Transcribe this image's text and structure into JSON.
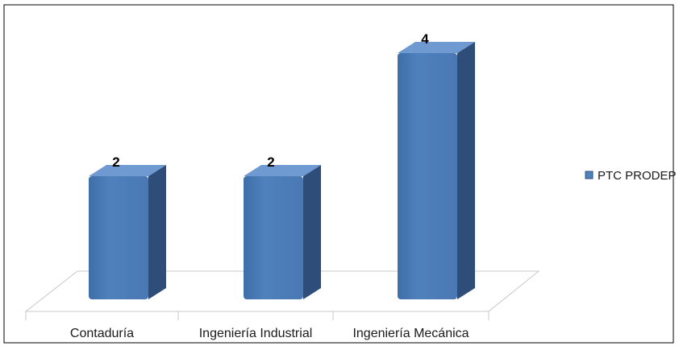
{
  "chart_data": {
    "type": "bar",
    "style": "3d-column",
    "categories": [
      "Contaduría",
      "Ingeniería Industrial",
      "Ingeniería Mecánica"
    ],
    "series": [
      {
        "name": "PTC PRODEP",
        "values": [
          2,
          2,
          4
        ],
        "color": "#4f81bd"
      }
    ],
    "data_labels": [
      "2",
      "2",
      "4"
    ],
    "title": "",
    "xlabel": "",
    "ylabel": "",
    "ylim": [
      0,
      4
    ],
    "grid": false,
    "legend_position": "right"
  },
  "colors": {
    "bar_front": "#4f81bd",
    "bar_side": "#2e4d78",
    "bar_top": "#6f9ad1",
    "border": "#000000",
    "floor": "#c8c8c8"
  }
}
